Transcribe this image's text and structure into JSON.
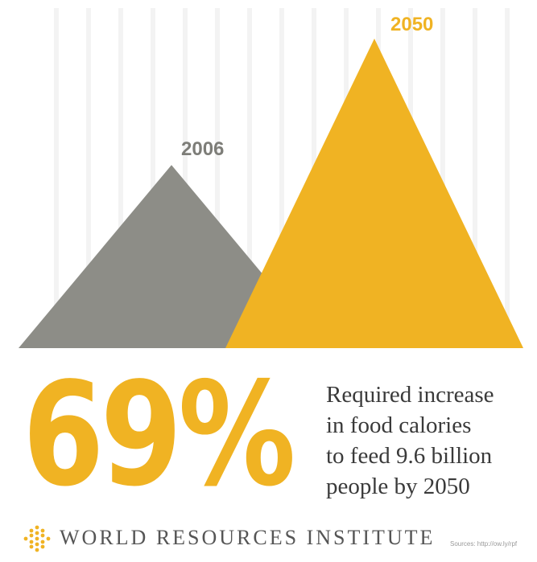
{
  "chart_data": {
    "type": "area",
    "title": "",
    "categories": [
      "2006",
      "2050"
    ],
    "values": [
      100,
      169
    ],
    "colors": [
      "#8d8d87",
      "#f0b323"
    ],
    "grid": true
  },
  "stat": {
    "value": "69%",
    "description_lines": [
      "Required increase",
      "in food calories",
      "to feed 9.6 billion",
      "people by 2050"
    ]
  },
  "footer": {
    "organization": "WORLD RESOURCES INSTITUTE",
    "source": "Sources: http://ow.ly/rpf"
  },
  "colors": {
    "accent": "#f0b323",
    "gray": "#8d8d87",
    "text": "#3a3a3a"
  }
}
